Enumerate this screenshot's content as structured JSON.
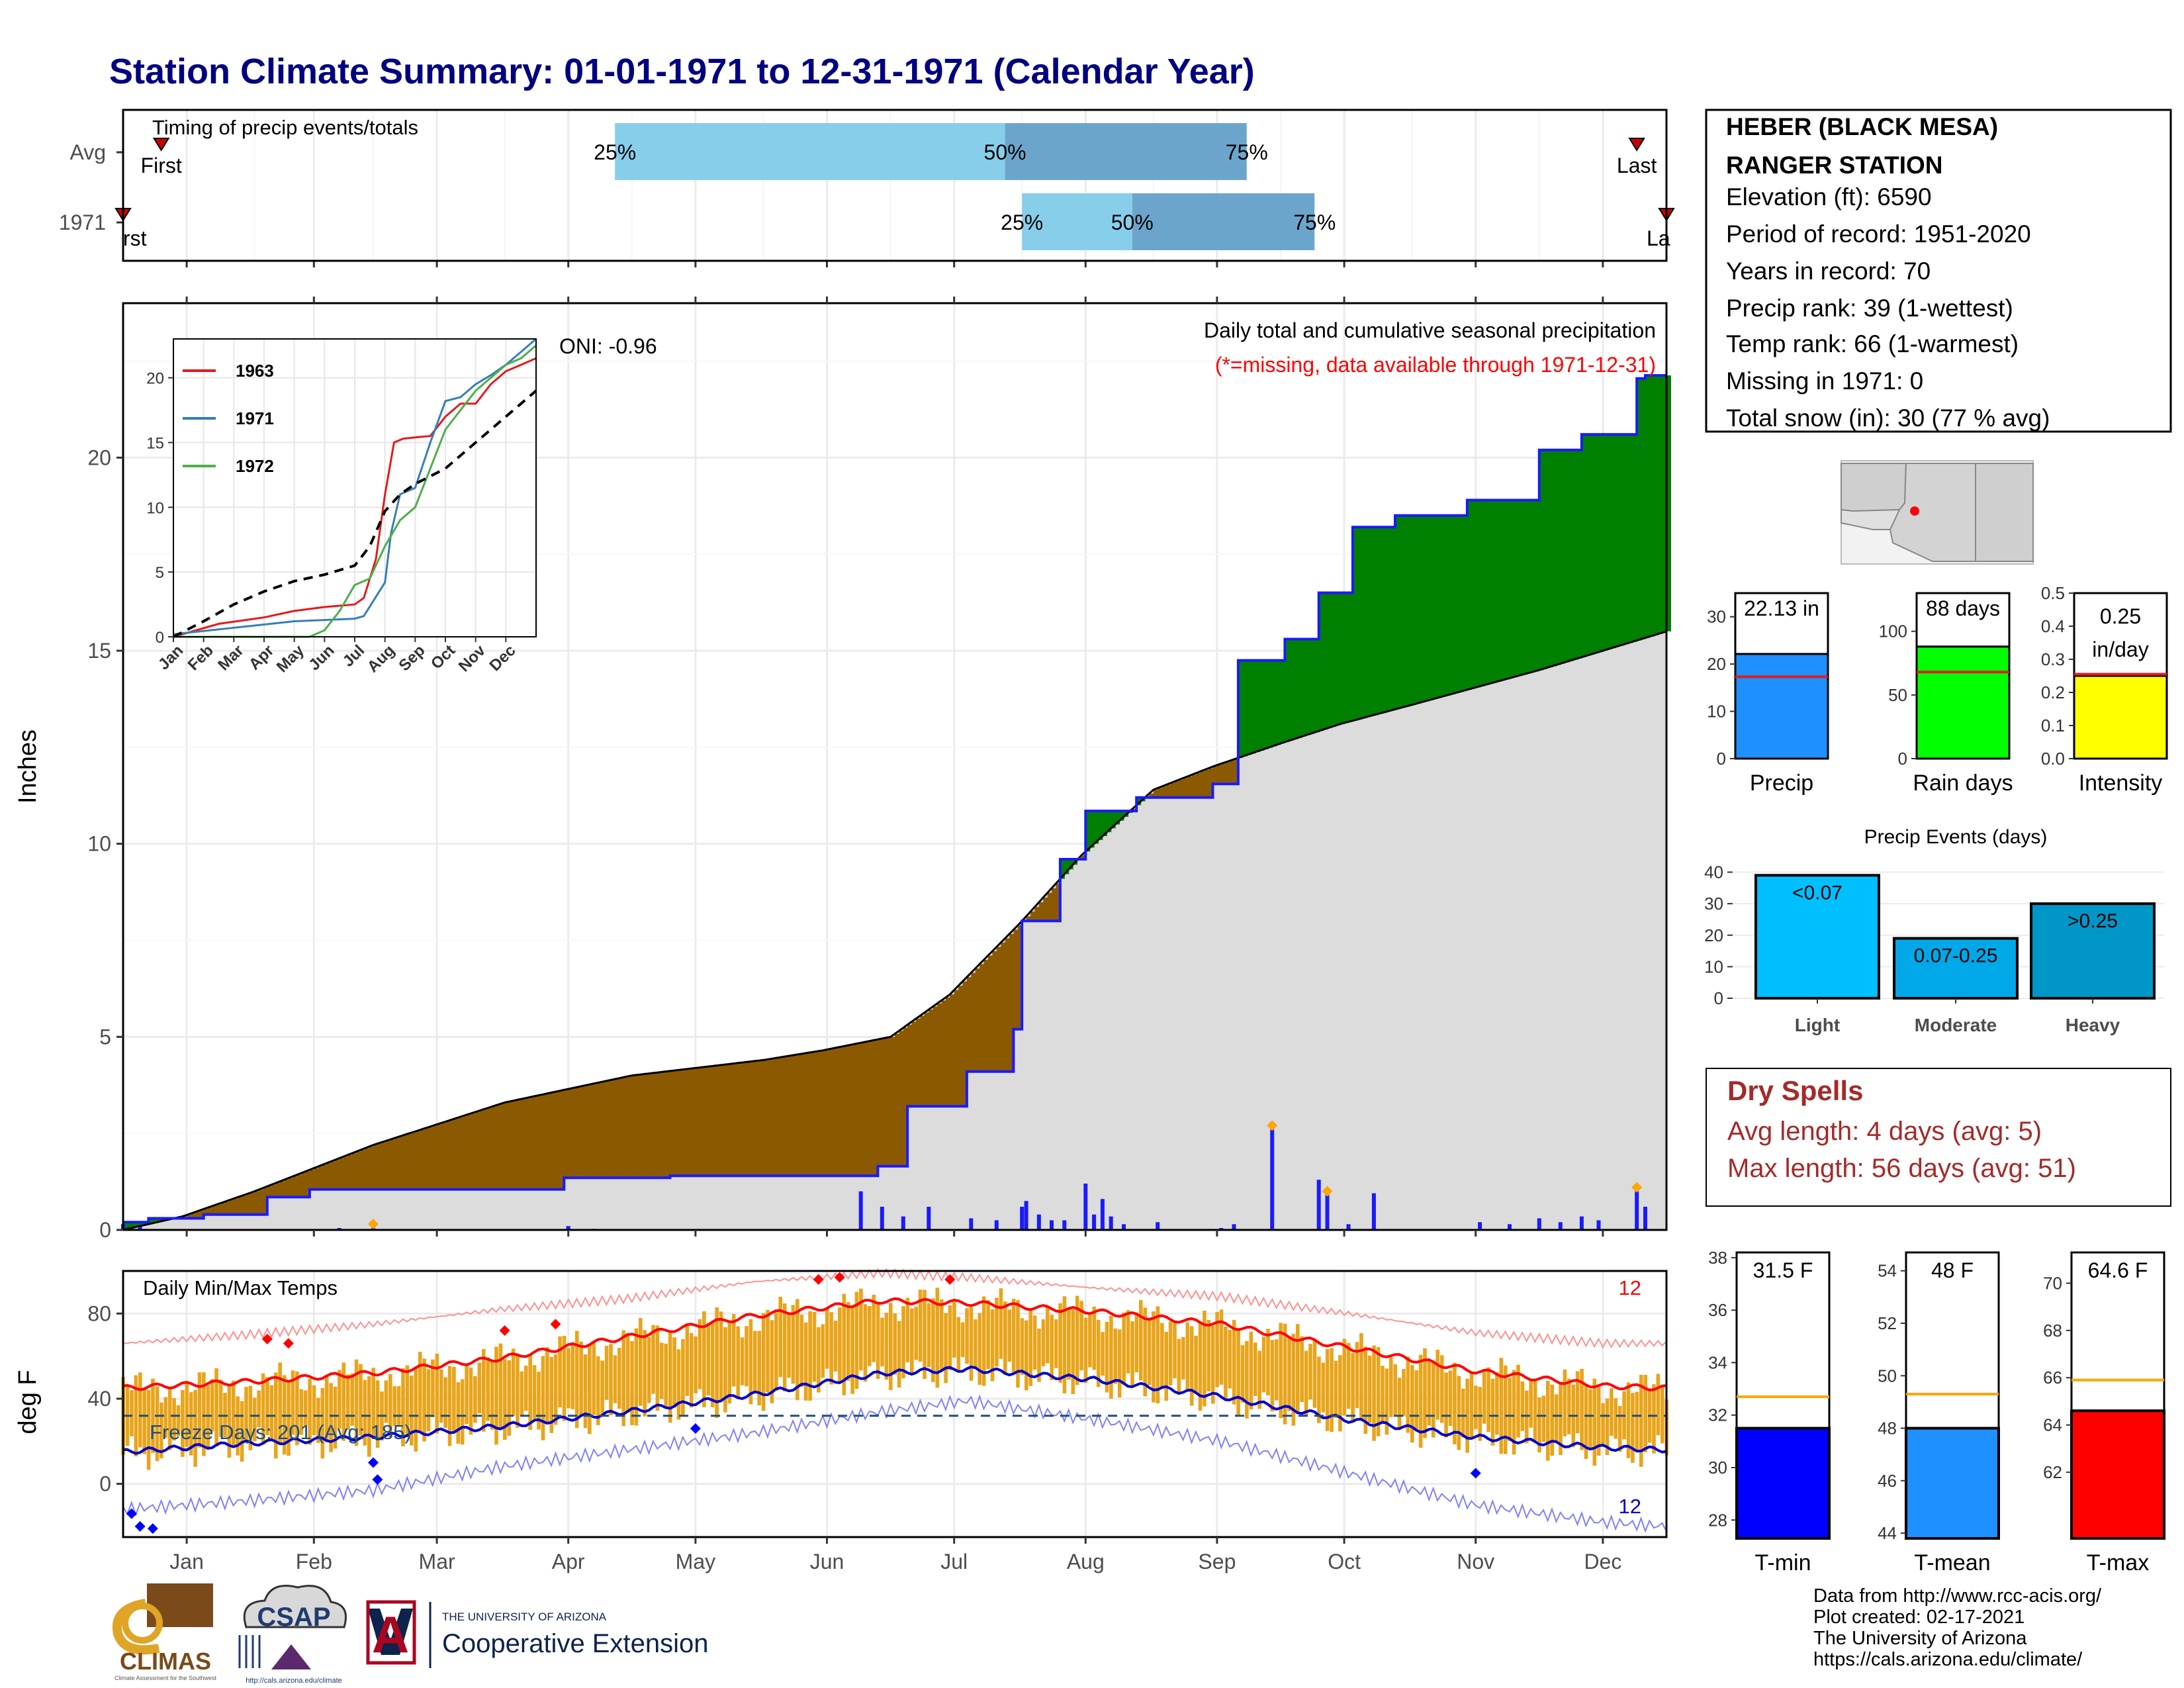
{
  "title": "Station Climate Summary: 01-01-1971 to 12-31-1971 (Calendar Year)",
  "colors": {
    "title": "#000080",
    "avg_fill": "#dcdcdc",
    "deficit": "#8B5A00",
    "surplus": "#008000",
    "cum_line": "#1a1aff",
    "bar_blue": "#1a1aff",
    "temp_bar": "#e8a41b",
    "tmax_line": "#ff0000",
    "tmin_line": "#0000cc",
    "precip_bar": "#1e90ff",
    "rain_bar": "#00ff00",
    "int_bar": "#ffff00",
    "tmin_bar": "#0000ff",
    "tmean_bar": "#1e90ff",
    "tmax_bar": "#ff0000",
    "avg_line_temp": "#ffa500",
    "light": "#00bfff",
    "moderate": "#00a8e8",
    "heavy": "#0096c8",
    "dry_text": "#a52a2a"
  },
  "chart_data": [
    {
      "id": "timing",
      "type": "bar",
      "title": "Timing of precip events/totals",
      "categories": [
        "Avg",
        "1971"
      ],
      "x_range": [
        "Jan",
        "Dec"
      ],
      "series": [
        {
          "name": "Avg",
          "q25": "Apr 27",
          "q50": "Jul 28",
          "q75": "Sep 23",
          "first": "Jan 10",
          "last": "Dec 24"
        },
        {
          "name": "1971",
          "q25": "Aug 1",
          "q50": "Aug 27",
          "q75": "Oct 9",
          "first": "Jan 1",
          "last": "Dec 31"
        }
      ],
      "labels": {
        "q25": "25%",
        "q50": "50%",
        "q75": "75%",
        "first": "First",
        "last": "Last",
        "first_clip": "rst",
        "last_clip": "La"
      }
    },
    {
      "id": "precip",
      "type": "area",
      "title": "Daily total and cumulative seasonal precipitation",
      "subtitle": "(*=missing, data available through 1971-12-31)",
      "oni": "ONI: -0.96",
      "ylabel": "Inches",
      "ylim": [
        0,
        24
      ],
      "yticks": [
        0,
        5,
        10,
        15,
        20
      ],
      "x_month_labels": [
        "Jan",
        "Feb",
        "Mar",
        "Apr",
        "May",
        "Jun",
        "Jul",
        "Aug",
        "Sep",
        "Oct",
        "Nov",
        "Dec"
      ],
      "avg_cumulative": {
        "day": [
          1,
          15,
          32,
          60,
          91,
          121,
          152,
          166,
          182,
          196,
          213,
          227,
          244,
          258,
          274,
          288,
          305,
          335,
          365
        ],
        "inches": [
          0,
          0.35,
          1.0,
          2.2,
          3.3,
          4.0,
          4.4,
          4.65,
          5.0,
          6.1,
          8.0,
          9.7,
          11.4,
          12.0,
          12.6,
          13.1,
          13.6,
          14.5,
          15.5
        ]
      },
      "obs_cumulative": {
        "day": [
          1,
          7,
          20,
          35,
          45,
          60,
          105,
          130,
          166,
          179,
          186,
          200,
          211,
          213,
          222,
          228,
          240,
          258,
          264,
          275,
          283,
          291,
          301,
          318,
          335,
          345,
          358,
          360,
          365
        ],
        "inches": [
          0.2,
          0.3,
          0.4,
          0.85,
          1.05,
          1.05,
          1.35,
          1.4,
          1.4,
          1.65,
          3.2,
          4.1,
          5.2,
          8.0,
          9.6,
          10.85,
          11.2,
          11.55,
          14.75,
          15.3,
          16.5,
          18.2,
          18.5,
          18.9,
          20.2,
          20.6,
          22.05,
          22.13,
          22.13
        ]
      },
      "daily": {
        "day": [
          1,
          5,
          52,
          60,
          106,
          112,
          175,
          180,
          185,
          191,
          201,
          207,
          213,
          214,
          217,
          220,
          223,
          228,
          230,
          232,
          234,
          237,
          245,
          260,
          263,
          272,
          283,
          285,
          290,
          296,
          321,
          328,
          335,
          340,
          345,
          349,
          358,
          360
        ],
        "inches": [
          0.15,
          0.08,
          0.05,
          0.05,
          0.1,
          0.03,
          1.0,
          0.6,
          0.35,
          0.6,
          0.3,
          0.25,
          0.6,
          0.75,
          0.4,
          0.25,
          0.25,
          1.2,
          0.4,
          0.8,
          0.35,
          0.15,
          0.2,
          0.05,
          0.15,
          2.6,
          1.3,
          0.9,
          0.15,
          0.95,
          0.2,
          0.15,
          0.3,
          0.2,
          0.35,
          0.25,
          1.0,
          0.6
        ]
      },
      "missing_markers_day": [
        60,
        272,
        285,
        358
      ]
    },
    {
      "id": "inset",
      "type": "line",
      "xlabels": [
        "Jan",
        "Feb",
        "Mar",
        "Apr",
        "May",
        "Jun",
        "Jul",
        "Aug",
        "Sep",
        "Oct",
        "Nov",
        "Dec"
      ],
      "ylim": [
        0,
        23
      ],
      "yticks": [
        0,
        5,
        10,
        15,
        20
      ],
      "series": [
        {
          "name": "1963",
          "color": "#e41a1c",
          "x": [
            0,
            1.5,
            3,
            4,
            5,
            6,
            6.3,
            6.7,
            7,
            7.3,
            7.6,
            8,
            8.5,
            9,
            9.5,
            10,
            10.5,
            11,
            11.5,
            12
          ],
          "y": [
            0,
            1,
            1.5,
            2,
            2.3,
            2.5,
            3,
            6,
            11,
            15,
            15.3,
            15.4,
            15.5,
            17,
            18,
            18,
            19.5,
            20.5,
            21,
            21.5
          ]
        },
        {
          "name": "1971",
          "color": "#377eb8",
          "x": [
            0,
            4,
            5,
            6,
            6.3,
            7,
            7.2,
            7.5,
            8,
            8.5,
            9,
            9.5,
            10,
            10.5,
            11,
            11.5,
            12
          ],
          "y": [
            0.2,
            1.2,
            1.3,
            1.4,
            1.6,
            4.2,
            8,
            11,
            11.5,
            15,
            18.2,
            18.5,
            19.5,
            20.2,
            21,
            22,
            23
          ]
        },
        {
          "name": "1972",
          "color": "#4daf4a",
          "x": [
            0,
            4.5,
            5,
            5.5,
            6,
            6.5,
            7,
            7.5,
            8,
            8.5,
            9,
            9.5,
            10,
            10.5,
            11,
            11.5,
            12
          ],
          "y": [
            0,
            0,
            0.5,
            2,
            4,
            4.5,
            7,
            9,
            10,
            13,
            16,
            17.5,
            19,
            20,
            21,
            21.5,
            22.5
          ]
        },
        {
          "name": "avg",
          "color": "#000000",
          "dashed": true,
          "x": [
            0,
            1,
            2,
            3,
            4,
            5,
            6,
            6.5,
            7,
            7.5,
            8,
            8.5,
            9,
            9.5,
            10,
            10.5,
            11,
            11.5,
            12
          ],
          "y": [
            0,
            1.2,
            2.5,
            3.5,
            4.3,
            4.8,
            5.5,
            7,
            9.7,
            11,
            11.8,
            12.4,
            13,
            14,
            15,
            16,
            17,
            18,
            19
          ]
        }
      ]
    },
    {
      "id": "temps",
      "type": "line",
      "title": "Daily Min/Max Temps",
      "freeze_label": "Freeze Days: 201 (Avg: 185)",
      "record_high_count": "12",
      "record_low_count": "12",
      "ylabel": "deg F",
      "ylim": [
        -25,
        100
      ],
      "yticks": [
        0,
        40,
        80
      ],
      "freeze_line": 32,
      "x_month_labels": [
        "Jan",
        "Feb",
        "Mar",
        "Apr",
        "May",
        "Jun",
        "Jul",
        "Aug",
        "Sep",
        "Oct",
        "Nov",
        "Dec"
      ],
      "avg_high_day": [
        1,
        30,
        60,
        90,
        120,
        150,
        180,
        200,
        230,
        260,
        290,
        320,
        350,
        365
      ],
      "avg_high": [
        45,
        48,
        52,
        59,
        69,
        79,
        86,
        85,
        81,
        75,
        64,
        53,
        46,
        45
      ],
      "avg_low_day": [
        1,
        30,
        60,
        90,
        120,
        150,
        180,
        200,
        230,
        260,
        290,
        320,
        350,
        365
      ],
      "avg_low": [
        15,
        19,
        22,
        27,
        34,
        42,
        52,
        54,
        49,
        41,
        30,
        22,
        17,
        16
      ],
      "record_high_day": [
        1,
        30,
        60,
        90,
        120,
        150,
        180,
        200,
        230,
        260,
        290,
        320,
        350,
        365
      ],
      "record_high": [
        66,
        70,
        75,
        82,
        87,
        95,
        99,
        97,
        92,
        88,
        80,
        71,
        66,
        66
      ],
      "record_low_day": [
        1,
        30,
        60,
        90,
        120,
        150,
        180,
        200,
        230,
        260,
        290,
        320,
        350,
        365
      ],
      "record_low": [
        -12,
        -8,
        -3,
        8,
        16,
        24,
        34,
        39,
        30,
        20,
        5,
        -10,
        -18,
        -20
      ]
    }
  ],
  "station": {
    "name_line1": "HEBER (BLACK MESA)",
    "name_line2": "RANGER STATION",
    "elevation": "Elevation (ft): 6590",
    "period": "Period of record: 1951-2020",
    "years": "Years in record: 70",
    "precip_rank": "Precip rank: 39 (1-wettest)",
    "temp_rank": "Temp rank: 66 (1-warmest)",
    "missing": "Missing in 1971: 0",
    "snow": "Total snow (in): 30 (77 % avg)"
  },
  "summary_bars": {
    "precip": {
      "label": "Precip",
      "value": 22.13,
      "value_label": "22.13 in",
      "avg": 17.3,
      "ymax": 35,
      "yticks": [
        0,
        10,
        20,
        30
      ]
    },
    "rain": {
      "label": "Rain days",
      "value": 88,
      "value_label": "88 days",
      "avg": 68,
      "ymax": 130,
      "yticks": [
        0,
        50,
        100
      ]
    },
    "intensity": {
      "label": "Intensity",
      "value": 0.25,
      "value_label_1": "0.25",
      "value_label_2": "in/day",
      "avg": 0.255,
      "ymax": 0.5,
      "yticks": [
        0.0,
        0.1,
        0.2,
        0.3,
        0.4,
        0.5
      ]
    }
  },
  "events": {
    "title": "Precip Events (days)",
    "categories": [
      "Light",
      "Moderate",
      "Heavy"
    ],
    "labels": [
      "<0.07",
      "0.07-0.25",
      ">0.25"
    ],
    "values": [
      39,
      19,
      30
    ],
    "ymax": 42,
    "yticks": [
      0,
      10,
      20,
      30,
      40
    ]
  },
  "dry_spells": {
    "title": "Dry Spells",
    "avg_length": "Avg length: 4 days (avg: 5)",
    "max_length": "Max length: 56 days (avg: 51)"
  },
  "temp_bars": {
    "tmin": {
      "label": "T-min",
      "value": 31.5,
      "value_label": "31.5 F",
      "avg": 32.7,
      "ymin": 27.3,
      "ymax": 38.2,
      "yticks": [
        28,
        30,
        32,
        34,
        36,
        38
      ]
    },
    "tmean": {
      "label": "T-mean",
      "value": 48,
      "value_label": "48 F",
      "avg": 49.3,
      "ymin": 43.8,
      "ymax": 54.7,
      "yticks": [
        44,
        46,
        48,
        50,
        52,
        54
      ]
    },
    "tmax": {
      "label": "T-max",
      "value": 64.6,
      "value_label": "64.6 F",
      "avg": 65.9,
      "ymin": 59.2,
      "ymax": 71.3,
      "yticks": [
        62,
        64,
        66,
        68,
        70
      ]
    }
  },
  "footer": {
    "line1": "Data from http://www.rcc-acis.org/",
    "line2": "Plot created: 02-17-2021",
    "line3": "The University of Arizona",
    "line4": "https://cals.arizona.edu/climate/"
  },
  "logos": {
    "climas": "CLIMAS",
    "climas_sub": "Climate Assessment for the Southwest",
    "csap": "CSAP",
    "csap_url": "http://cals.arizona.edu/climate",
    "ua_top": "THE UNIVERSITY OF ARIZONA",
    "ua_bottom": "Cooperative Extension"
  }
}
